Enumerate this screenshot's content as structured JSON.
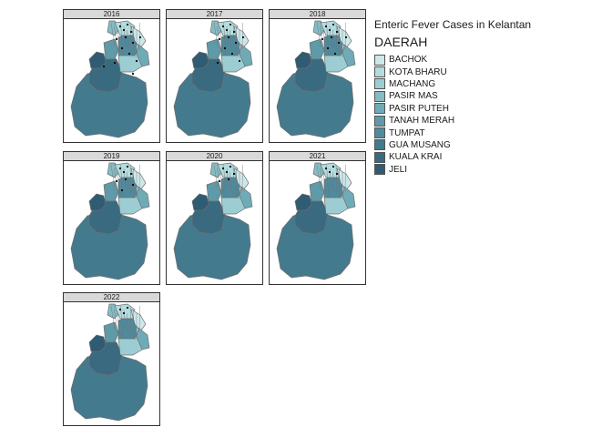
{
  "legend_title": "Enteric Fever Cases in Kelantan",
  "legend_subtitle": "DAERAH",
  "districts": [
    {
      "name": "BACHOK",
      "color": "#cce8ea"
    },
    {
      "name": "KOTA BHARU",
      "color": "#b3dcdf"
    },
    {
      "name": "MACHANG",
      "color": "#9bcdd2"
    },
    {
      "name": "PASIR MAS",
      "color": "#84bcc4"
    },
    {
      "name": "PASIR PUTEH",
      "color": "#6fabb6"
    },
    {
      "name": "TANAH MERAH",
      "color": "#5e9aa8"
    },
    {
      "name": "TUMPAT",
      "color": "#508a9c"
    },
    {
      "name": "GUA MUSANG",
      "color": "#447a8e"
    },
    {
      "name": "KUALA KRAI",
      "color": "#396a80"
    },
    {
      "name": "JELI",
      "color": "#2f5b73"
    }
  ],
  "years": [
    "2016",
    "2017",
    "2018",
    "2019",
    "2020",
    "2021",
    "2022"
  ]
}
